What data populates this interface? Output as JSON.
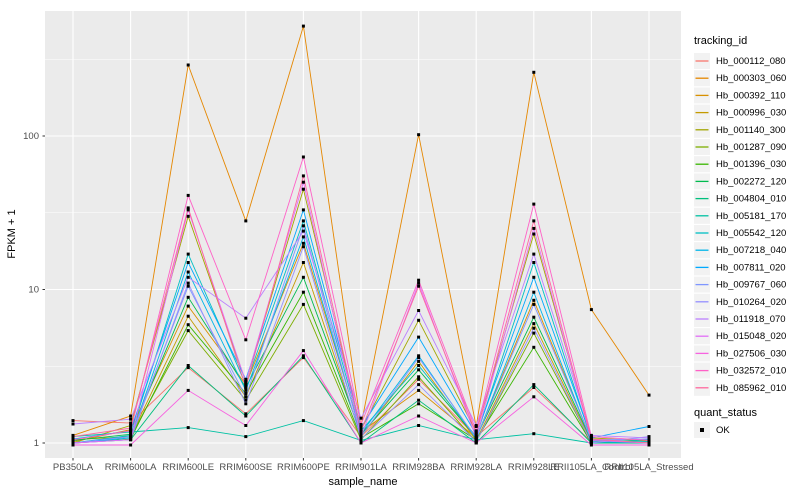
{
  "figure": {
    "panel_background": "#EBEBEB",
    "gridline_color": "#FFFFFF",
    "tick_label_color": "#4D4D4D",
    "point_color": "#000000",
    "legend_key_fill": "#F2F2F2"
  },
  "chart_data": {
    "type": "line",
    "title": "",
    "xlabel": "sample_name",
    "ylabel": "FPKM + 1",
    "y_scale": "log10",
    "y_ticks": [
      1,
      10,
      100
    ],
    "y_tick_labels": [
      "1",
      "10",
      "100"
    ],
    "y_minor_ticks": [
      3.162,
      31.62,
      316.2
    ],
    "ylim": [
      0.79,
      650
    ],
    "grid": true,
    "legend_position": "right",
    "point_marker": "small black square (quant_status OK)",
    "categories": [
      "PB350LA",
      "RRIM600LA",
      "RRIM600LE",
      "RRIM600SE",
      "RRIM600PE",
      "RRIM901LA",
      "RRIM928BA",
      "RRIM928LA",
      "RRIM928LE",
      "RRII105LA_Control",
      "RRII105LA_Stressed"
    ],
    "series": [
      {
        "name": "Hb_000112_080",
        "color": "#F8766D",
        "values": [
          1.4,
          1.35,
          3.1,
          1.55,
          3.6,
          1.1,
          2.6,
          1.1,
          2.3,
          1.02,
          1.0
        ]
      },
      {
        "name": "Hb_000303_060",
        "color": "#E58700",
        "values": [
          1.12,
          1.5,
          290,
          28,
          520,
          1.3,
          102,
          1.28,
          260,
          7.4,
          2.05
        ]
      },
      {
        "name": "Hb_000392_110",
        "color": "#D89000",
        "values": [
          1.02,
          1.22,
          7.8,
          2.4,
          20,
          1.18,
          2.2,
          1.08,
          8.5,
          1.05,
          1.0
        ]
      },
      {
        "name": "Hb_000996_030",
        "color": "#C49A00",
        "values": [
          1.05,
          1.1,
          6.7,
          2.0,
          15,
          1.1,
          3.4,
          1.04,
          6.0,
          1.02,
          1.0
        ]
      },
      {
        "name": "Hb_001140_300",
        "color": "#A3A500",
        "values": [
          1.0,
          1.3,
          30,
          2.5,
          45,
          1.22,
          6.3,
          1.18,
          23,
          1.08,
          1.03
        ]
      },
      {
        "name": "Hb_001287_090",
        "color": "#7CAE00",
        "values": [
          1.0,
          1.1,
          5.4,
          1.9,
          8.0,
          1.05,
          2.7,
          1.02,
          5.2,
          1.0,
          1.0
        ]
      },
      {
        "name": "Hb_001396_030",
        "color": "#39B600",
        "values": [
          1.0,
          1.06,
          5.9,
          2.1,
          9.6,
          1.08,
          1.8,
          1.05,
          4.2,
          1.0,
          1.0
        ]
      },
      {
        "name": "Hb_002272_120",
        "color": "#00BB4E",
        "values": [
          1.04,
          1.14,
          8.9,
          2.3,
          12,
          1.14,
          3.0,
          1.09,
          6.6,
          1.04,
          1.0
        ]
      },
      {
        "name": "Hb_004804_010",
        "color": "#00BF7D",
        "values": [
          1.0,
          1.05,
          3.2,
          1.5,
          3.7,
          1.0,
          1.9,
          1.0,
          2.4,
          1.0,
          1.0
        ]
      },
      {
        "name": "Hb_005181_170",
        "color": "#00C1A3",
        "values": [
          1.1,
          1.18,
          1.26,
          1.1,
          1.4,
          1.04,
          1.3,
          1.05,
          1.15,
          1.0,
          1.05
        ]
      },
      {
        "name": "Hb_005542_120",
        "color": "#00BFC4",
        "values": [
          1.0,
          1.12,
          17,
          2.4,
          28,
          1.2,
          3.2,
          1.1,
          15,
          1.05,
          1.02
        ]
      },
      {
        "name": "Hb_007218_040",
        "color": "#00B5E8",
        "values": [
          1.0,
          1.08,
          13,
          2.2,
          22,
          1.15,
          3.7,
          1.06,
          9.6,
          1.02,
          1.0
        ]
      },
      {
        "name": "Hb_007811_020",
        "color": "#00A9FF",
        "values": [
          1.06,
          1.2,
          15,
          2.6,
          33,
          1.26,
          4.9,
          1.14,
          12,
          1.08,
          1.28
        ]
      },
      {
        "name": "Hb_009767_060",
        "color": "#7F96FF",
        "values": [
          1.0,
          1.1,
          10.5,
          2.0,
          26,
          1.1,
          3.6,
          1.08,
          8.0,
          1.05,
          1.06
        ]
      },
      {
        "name": "Hb_010264_020",
        "color": "#9590FF",
        "values": [
          1.0,
          1.05,
          11,
          1.8,
          19,
          1.06,
          2.4,
          1.02,
          5.6,
          1.0,
          1.1
        ]
      },
      {
        "name": "Hb_011918_070",
        "color": "#BC81FF",
        "values": [
          1.33,
          1.43,
          12,
          6.5,
          24,
          1.45,
          7.3,
          1.3,
          17,
          1.12,
          1.08
        ]
      },
      {
        "name": "Hb_015048_020",
        "color": "#E26EF7",
        "values": [
          1.0,
          1.05,
          33,
          2.5,
          50,
          1.1,
          11,
          1.08,
          25,
          1.04,
          1.0
        ]
      },
      {
        "name": "Hb_027506_030",
        "color": "#F763E0",
        "values": [
          0.97,
          0.97,
          2.2,
          1.3,
          4.0,
          1.0,
          1.5,
          1.0,
          2.0,
          0.97,
          0.97
        ]
      },
      {
        "name": "Hb_032572_010",
        "color": "#FF61C7",
        "values": [
          1.05,
          1.2,
          41,
          4.7,
          73,
          1.32,
          11.5,
          1.2,
          36,
          1.1,
          1.04
        ]
      },
      {
        "name": "Hb_085962_010",
        "color": "#FF689E",
        "values": [
          1.1,
          1.25,
          34,
          2.3,
          55,
          1.2,
          10.5,
          1.15,
          28,
          1.06,
          1.0
        ]
      }
    ],
    "legends": {
      "tracking": {
        "title": "tracking_id"
      },
      "quant": {
        "title": "quant_status",
        "entries": [
          "OK"
        ]
      }
    }
  }
}
